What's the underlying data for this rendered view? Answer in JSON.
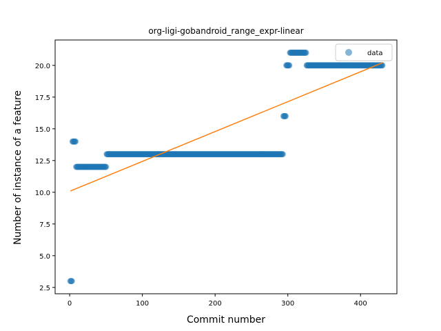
{
  "chart_data": {
    "type": "scatter",
    "title": "org-ligi-gobandroid_range_expr-linear",
    "xlabel": "Commit number",
    "ylabel": "Number of instance of a feature",
    "xlim": [
      -20,
      450
    ],
    "ylim": [
      2.0,
      22.0
    ],
    "xticks": [
      0,
      100,
      200,
      300,
      400
    ],
    "yticks": [
      2.5,
      5.0,
      7.5,
      10.0,
      12.5,
      15.0,
      17.5,
      20.0
    ],
    "ytick_labels": [
      "2.5",
      "5.0",
      "7.5",
      "10.0",
      "12.5",
      "15.0",
      "17.5",
      "20.0"
    ],
    "legend": {
      "position": "top-right",
      "entries": [
        "data"
      ]
    },
    "colors": {
      "scatter": "#1f77b4",
      "fit": "#ff7f0e"
    },
    "series": [
      {
        "name": "data",
        "kind": "scatter",
        "segments": [
          {
            "x_start": 1,
            "x_end": 3,
            "y": 3.0
          },
          {
            "x_start": 4,
            "x_end": 8,
            "y": 14.0
          },
          {
            "x_start": 9,
            "x_end": 50,
            "y": 12.0
          },
          {
            "x_start": 51,
            "x_end": 293,
            "y": 13.0
          },
          {
            "x_start": 294,
            "x_end": 297,
            "y": 16.0
          },
          {
            "x_start": 298,
            "x_end": 302,
            "y": 20.0
          },
          {
            "x_start": 303,
            "x_end": 325,
            "y": 21.0
          },
          {
            "x_start": 326,
            "x_end": 430,
            "y": 20.0
          }
        ]
      },
      {
        "kind": "line",
        "points": [
          [
            1,
            10.1
          ],
          [
            430,
            20.2
          ]
        ]
      }
    ]
  }
}
